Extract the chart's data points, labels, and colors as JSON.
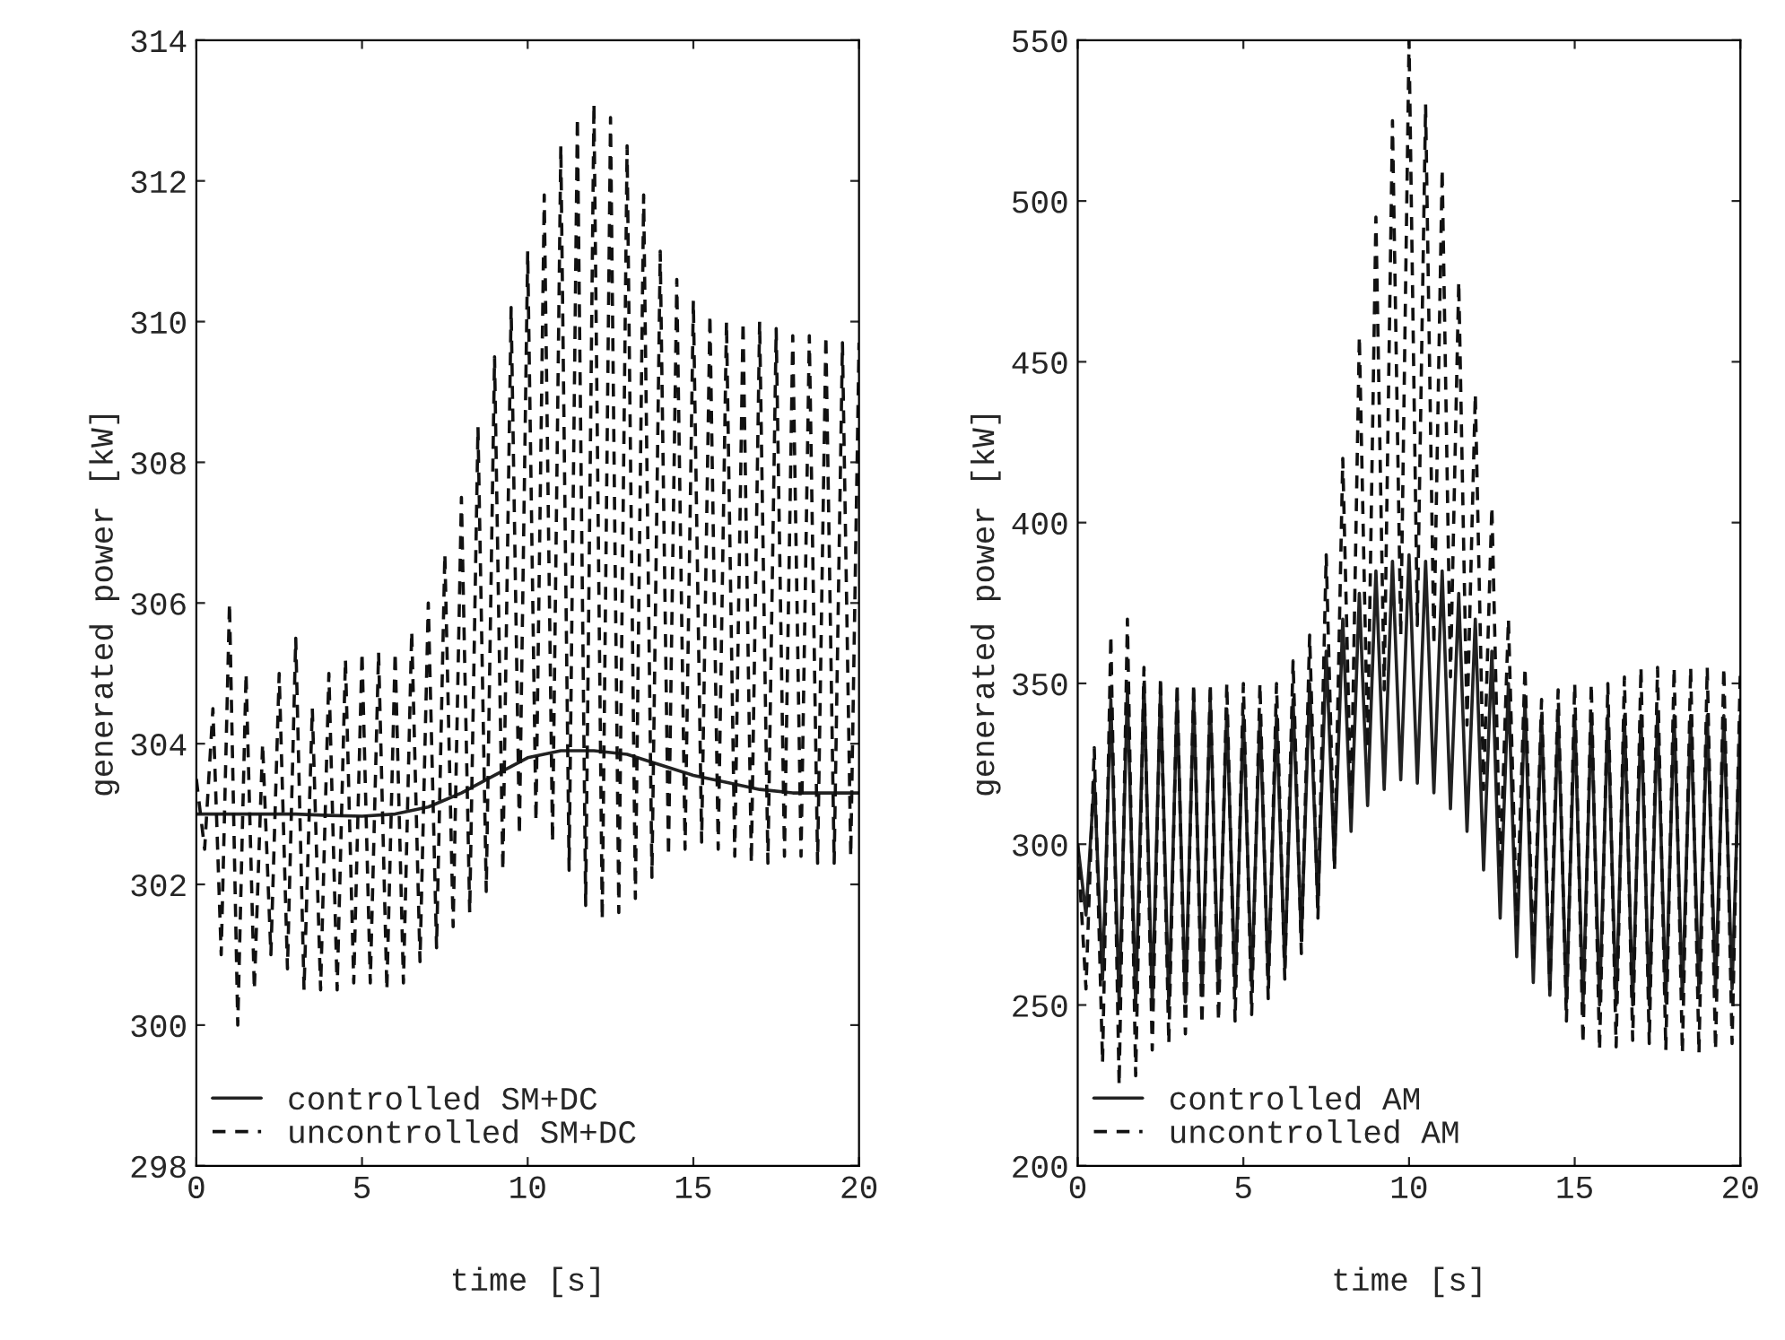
{
  "chart_data": [
    {
      "type": "line",
      "xlabel": "time [s]",
      "ylabel": "generated power [kW]",
      "xlim": [
        0,
        20
      ],
      "xticks": [
        0,
        5,
        10,
        15,
        20
      ],
      "ylim": [
        298,
        314
      ],
      "yticks": [
        298,
        300,
        302,
        304,
        306,
        308,
        310,
        312,
        314
      ],
      "grid": false,
      "legend": "bottom left",
      "series": [
        {
          "name": "controlled SM+DC",
          "color": "#222222",
          "line_style": "solid",
          "x": [
            0,
            1,
            2,
            3,
            4,
            5,
            6,
            7,
            8,
            9,
            10,
            11,
            12,
            13,
            14,
            15,
            16,
            17,
            18,
            19,
            20
          ],
          "values": [
            303,
            303,
            303,
            303,
            302.98,
            302.97,
            303,
            303.1,
            303.3,
            303.55,
            303.8,
            303.9,
            303.9,
            303.85,
            303.7,
            303.55,
            303.45,
            303.35,
            303.3,
            303.3,
            303.3
          ]
        },
        {
          "name": "uncontrolled SM+DC",
          "color": "#111111",
          "line_style": "dashed",
          "x": [
            0,
            0.25,
            0.5,
            0.75,
            1,
            1.25,
            1.5,
            1.75,
            2,
            2.25,
            2.5,
            2.75,
            3,
            3.25,
            3.5,
            3.75,
            4,
            4.25,
            4.5,
            4.75,
            5,
            5.25,
            5.5,
            5.75,
            6,
            6.25,
            6.5,
            6.75,
            7,
            7.25,
            7.5,
            7.75,
            8,
            8.25,
            8.5,
            8.75,
            9,
            9.25,
            9.5,
            9.75,
            10,
            10.25,
            10.5,
            10.75,
            11,
            11.25,
            11.5,
            11.75,
            12,
            12.25,
            12.5,
            12.75,
            13,
            13.25,
            13.5,
            13.75,
            14,
            14.25,
            14.5,
            14.75,
            15,
            15.25,
            15.5,
            15.75,
            16,
            16.25,
            16.5,
            16.75,
            17,
            17.25,
            17.5,
            17.75,
            18,
            18.25,
            18.5,
            18.75,
            19,
            19.25,
            19.5,
            19.75,
            20
          ],
          "values": [
            303.5,
            302.5,
            304.5,
            301,
            306,
            300,
            305,
            300.5,
            304,
            301,
            305,
            300.8,
            305.5,
            300.5,
            304.5,
            300.5,
            305,
            300.5,
            305.2,
            300.6,
            305.3,
            300.6,
            305.3,
            300.5,
            305.3,
            300.6,
            305.6,
            300.9,
            306,
            301.1,
            306.7,
            301.4,
            307.5,
            301.6,
            308.5,
            301.9,
            309.5,
            302.2,
            310.2,
            302.7,
            311,
            302.9,
            311.8,
            302.6,
            312.5,
            302.2,
            312.9,
            301.7,
            313.1,
            301.5,
            312.9,
            301.6,
            312.5,
            301.8,
            311.8,
            302.1,
            311,
            302.4,
            310.6,
            302.5,
            310.3,
            302.6,
            310.1,
            302.5,
            310,
            302.4,
            310,
            302.3,
            310,
            302.3,
            309.9,
            302.4,
            309.8,
            302.4,
            309.8,
            302.3,
            309.8,
            302.3,
            309.7,
            302.4,
            309.7
          ]
        }
      ]
    },
    {
      "type": "line",
      "xlabel": "time [s]",
      "ylabel": "generated power [kW]",
      "xlim": [
        0,
        20
      ],
      "xticks": [
        0,
        5,
        10,
        15,
        20
      ],
      "ylim": [
        200,
        550
      ],
      "yticks": [
        200,
        250,
        300,
        350,
        400,
        450,
        500,
        550
      ],
      "grid": false,
      "legend": "bottom left",
      "series": [
        {
          "name": "controlled AM",
          "color": "#222222",
          "line_style": "solid",
          "x": [
            0,
            0.25,
            0.5,
            0.75,
            1,
            1.25,
            1.5,
            1.75,
            2,
            2.25,
            2.5,
            2.75,
            3,
            3.25,
            3.5,
            3.75,
            4,
            4.25,
            4.5,
            4.75,
            5,
            5.25,
            5.5,
            5.75,
            6,
            6.25,
            6.5,
            6.75,
            7,
            7.25,
            7.5,
            7.75,
            8,
            8.25,
            8.5,
            8.75,
            9,
            9.25,
            9.5,
            9.75,
            10,
            10.25,
            10.5,
            10.75,
            11,
            11.25,
            11.5,
            11.75,
            12,
            12.25,
            12.5,
            12.75,
            13,
            13.25,
            13.5,
            13.75,
            14,
            14.25,
            14.5,
            14.75,
            15,
            15.25,
            15.5,
            15.75,
            16,
            16.25,
            16.5,
            16.75,
            17,
            17.25,
            17.5,
            17.75,
            18,
            18.25,
            18.5,
            18.75,
            19,
            19.25,
            19.5,
            19.75,
            20
          ],
          "values": [
            300,
            278,
            320,
            258,
            345,
            250,
            348,
            250,
            350,
            250,
            348,
            250,
            345,
            251,
            345,
            253,
            345,
            255,
            342,
            255,
            340,
            256,
            340,
            258,
            340,
            262,
            345,
            270,
            350,
            281,
            360,
            294,
            370,
            304,
            378,
            312,
            385,
            317,
            388,
            320,
            390,
            319,
            388,
            316,
            385,
            311,
            378,
            304,
            370,
            292,
            360,
            277,
            350,
            265,
            345,
            257,
            340,
            253,
            340,
            251,
            340,
            250,
            340,
            250,
            340,
            250,
            340,
            250,
            340,
            250,
            340,
            251,
            340,
            252,
            340,
            254,
            340,
            255,
            340,
            255,
            340
          ]
        },
        {
          "name": "uncontrolled AM",
          "color": "#111111",
          "line_style": "dashed",
          "x": [
            0,
            0.25,
            0.5,
            0.75,
            1,
            1.25,
            1.5,
            1.75,
            2,
            2.25,
            2.5,
            2.75,
            3,
            3.25,
            3.5,
            3.75,
            4,
            4.25,
            4.5,
            4.75,
            5,
            5.25,
            5.5,
            5.75,
            6,
            6.25,
            6.5,
            6.75,
            7,
            7.25,
            7.5,
            7.75,
            8,
            8.25,
            8.5,
            8.75,
            9,
            9.25,
            9.5,
            9.75,
            10,
            10.25,
            10.5,
            10.75,
            11,
            11.25,
            11.5,
            11.75,
            12,
            12.25,
            12.5,
            12.75,
            13,
            13.25,
            13.5,
            13.75,
            14,
            14.25,
            14.5,
            14.75,
            15,
            15.25,
            15.5,
            15.75,
            16,
            16.25,
            16.5,
            16.75,
            17,
            17.25,
            17.5,
            17.75,
            18,
            18.25,
            18.5,
            18.75,
            19,
            19.25,
            19.5,
            19.75,
            20
          ],
          "values": [
            300,
            255,
            330,
            232,
            365,
            225,
            370,
            228,
            355,
            236,
            352,
            238,
            350,
            241,
            350,
            244,
            350,
            245,
            350,
            245,
            350,
            247,
            350,
            252,
            350,
            258,
            357,
            266,
            365,
            277,
            390,
            292,
            420,
            310,
            458,
            330,
            495,
            348,
            525,
            365,
            550,
            368,
            530,
            362,
            510,
            352,
            475,
            337,
            440,
            317,
            405,
            292,
            370,
            275,
            355,
            263,
            345,
            255,
            348,
            245,
            350,
            238,
            350,
            236,
            350,
            237,
            352,
            239,
            355,
            238,
            355,
            236,
            355,
            235,
            355,
            235,
            355,
            236,
            355,
            238,
            355
          ]
        }
      ]
    }
  ]
}
